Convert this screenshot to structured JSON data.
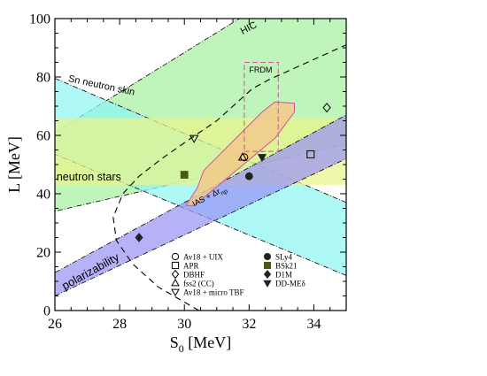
{
  "chart_data": {
    "type": "scatter",
    "xlabel": "S",
    "xlabel_sub": "0",
    "xlabel_unit": " [MeV]",
    "ylabel": "L [MeV]",
    "xlim": [
      26,
      35
    ],
    "ylim": [
      0,
      100
    ],
    "xticks": [
      26,
      28,
      30,
      32,
      34
    ],
    "yticks": [
      0,
      20,
      40,
      60,
      80,
      100
    ],
    "regions": [
      {
        "name": "HIC",
        "color": "#a6f0a0",
        "border": "dash-dot",
        "polygon": [
          [
            26,
            61
          ],
          [
            31.7,
            100
          ],
          [
            35,
            100
          ],
          [
            35,
            57
          ],
          [
            26,
            34
          ]
        ]
      },
      {
        "name": "Sn neutron skin",
        "color": "#8ff5f3",
        "border": "dash-dot",
        "polygon": [
          [
            26,
            79.5
          ],
          [
            35,
            37
          ],
          [
            35,
            12
          ],
          [
            26,
            53.5
          ]
        ]
      },
      {
        "name": "neutron stars",
        "color": "#e9f58a",
        "border": "none",
        "polygon": [
          [
            26,
            43
          ],
          [
            35,
            43
          ],
          [
            35,
            66
          ],
          [
            26,
            66
          ]
        ]
      },
      {
        "name": "polarizability",
        "color": "#9a94f5",
        "border": "dash-dot",
        "polygon": [
          [
            26,
            5
          ],
          [
            35,
            52
          ],
          [
            35,
            67
          ],
          [
            26,
            13
          ]
        ]
      },
      {
        "name": "IAS + Δr_np",
        "color": "#f2c98a",
        "border": "solid",
        "polygon": [
          [
            30.3,
            36
          ],
          [
            32.8,
            59
          ],
          [
            33.4,
            68
          ],
          [
            33.4,
            71
          ],
          [
            32.8,
            71.5
          ],
          [
            32.4,
            68
          ],
          [
            31.5,
            58
          ],
          [
            30.6,
            48
          ],
          [
            30.4,
            42
          ],
          [
            30.05,
            36
          ]
        ]
      },
      {
        "name": "FRDM",
        "color": "none",
        "border": "dashed",
        "polygon": [
          [
            31.85,
            54.5
          ],
          [
            32.9,
            54.5
          ],
          [
            32.9,
            85
          ],
          [
            31.85,
            85
          ]
        ]
      }
    ],
    "curves": [
      {
        "name": "contour",
        "style": "dashed",
        "points": [
          [
            30.45,
            0
          ],
          [
            29.2,
            8
          ],
          [
            28.4,
            16
          ],
          [
            27.9,
            24
          ],
          [
            27.8,
            32
          ],
          [
            28.1,
            40
          ],
          [
            28.6,
            46
          ],
          [
            29.3,
            52
          ],
          [
            30.2,
            59
          ],
          [
            31.0,
            65
          ],
          [
            31.6,
            71
          ],
          [
            32.1,
            76
          ],
          [
            32.6,
            79
          ],
          [
            33.2,
            82
          ],
          [
            34.0,
            86
          ],
          [
            35.0,
            91
          ]
        ]
      }
    ],
    "points": [
      {
        "name": "Av18 + UIX",
        "marker": "circle-open",
        "x": 31.85,
        "y": 52.5
      },
      {
        "name": "APR",
        "marker": "square-open",
        "x": 33.9,
        "y": 53.5
      },
      {
        "name": "DBHF",
        "marker": "diamond-open",
        "x": 34.4,
        "y": 69.5
      },
      {
        "name": "fss2 (CC)",
        "marker": "triangle-up-open",
        "x": 31.8,
        "y": 52.5
      },
      {
        "name": "Av18 + micro TBF",
        "marker": "triangle-down-open",
        "x": 30.3,
        "y": 59
      },
      {
        "name": "SLy4",
        "marker": "circle-filled",
        "x": 32.0,
        "y": 46
      },
      {
        "name": "BSk21",
        "marker": "square-filled",
        "x": 30.0,
        "y": 46.5
      },
      {
        "name": "D1M",
        "marker": "diamond-filled",
        "x": 28.6,
        "y": 25
      },
      {
        "name": "DD-MEδ",
        "marker": "triangle-down-filled",
        "x": 32.4,
        "y": 52.5
      }
    ],
    "legend": {
      "placement": "bottom-right",
      "columns": 2
    }
  }
}
